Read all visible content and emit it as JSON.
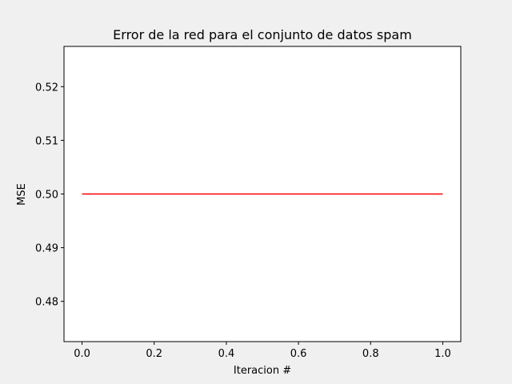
{
  "chart_data": {
    "type": "line",
    "title": "Error de la red para el conjunto de datos spam",
    "xlabel": "Iteracion #",
    "ylabel": "MSE",
    "xlim": [
      -0.05,
      1.05
    ],
    "ylim": [
      0.4725,
      0.5275
    ],
    "xticks": [
      0.0,
      0.2,
      0.4,
      0.6,
      0.8,
      1.0
    ],
    "xtick_labels": [
      "0.0",
      "0.2",
      "0.4",
      "0.6",
      "0.8",
      "1.0"
    ],
    "yticks": [
      0.48,
      0.49,
      0.5,
      0.51,
      0.52
    ],
    "ytick_labels": [
      "0.48",
      "0.49",
      "0.50",
      "0.51",
      "0.52"
    ],
    "grid": false,
    "series": [
      {
        "color": "#ff0000",
        "x": [
          0,
          1
        ],
        "y": [
          0.5,
          0.5
        ]
      }
    ]
  }
}
